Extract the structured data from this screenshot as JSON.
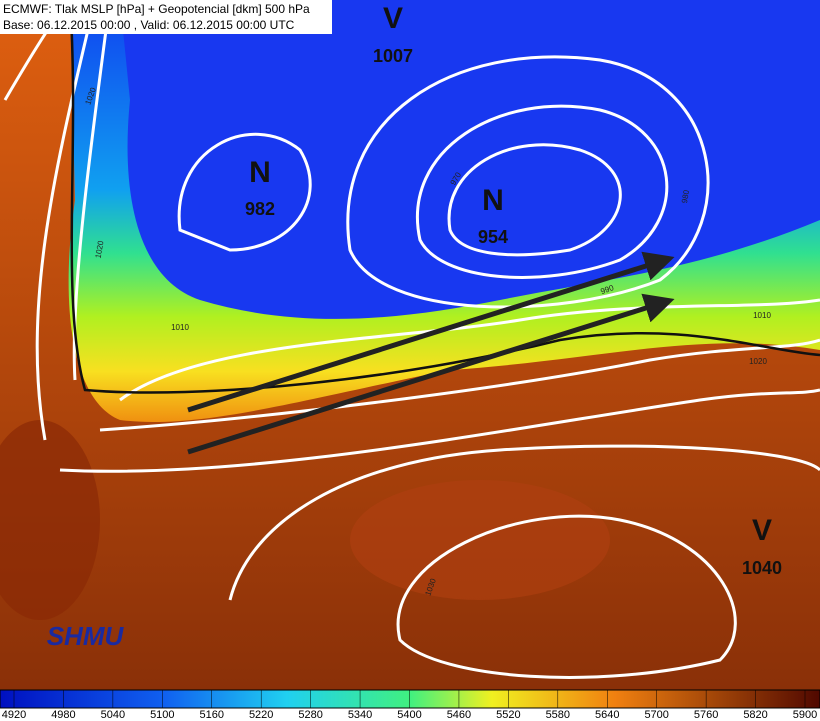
{
  "header": {
    "line1": "ECMWF: Tlak MSLP [hPa] + Geopotencial [dkm] 500 hPa",
    "line2": "Base: 06.12.2015 00:00 , Valid: 06.12.2015 00:00 UTC"
  },
  "centers": [
    {
      "symbol": "V",
      "value": "1007"
    },
    {
      "symbol": "N",
      "value": "982"
    },
    {
      "symbol": "N",
      "value": "954"
    },
    {
      "symbol": "V",
      "value": "1040"
    }
  ],
  "isobar_labels": [
    "1020",
    "1020",
    "1010",
    "970",
    "980",
    "990",
    "1010",
    "1020",
    "1030"
  ],
  "logo": "SHMU",
  "colorbar": {
    "ticks": [
      "4920",
      "4980",
      "5040",
      "5100",
      "5160",
      "5220",
      "5280",
      "5340",
      "5400",
      "5460",
      "5520",
      "5580",
      "5640",
      "5700",
      "5760",
      "5820",
      "5900"
    ]
  }
}
